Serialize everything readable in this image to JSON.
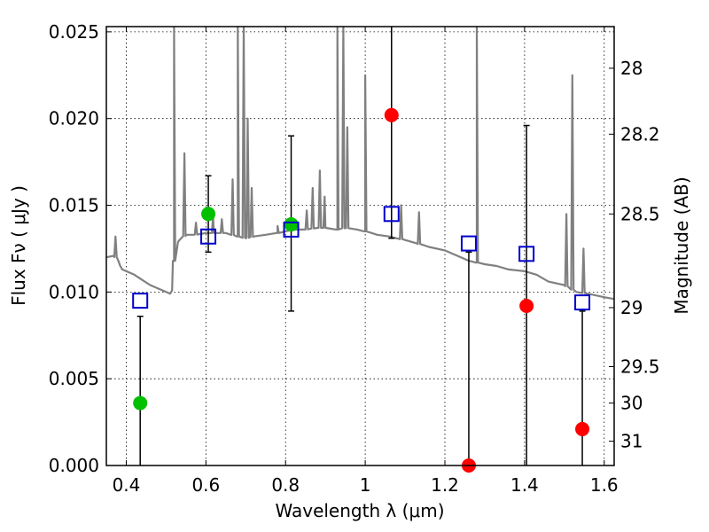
{
  "chart_data": {
    "type": "scatter",
    "xlabel": "Wavelength  λ (μm)",
    "ylabel": "Flux  Fν  ( μJy )",
    "y2label": "Magnitude (AB)",
    "xlim": [
      0.35,
      1.625
    ],
    "ylim": [
      0.0,
      0.0253
    ],
    "grid": true,
    "xticks": [
      {
        "value": 0.4,
        "label": "0.4"
      },
      {
        "value": 0.6,
        "label": "0.6"
      },
      {
        "value": 0.8,
        "label": "0.8"
      },
      {
        "value": 1.0,
        "label": "1"
      },
      {
        "value": 1.2,
        "label": "1.2"
      },
      {
        "value": 1.4,
        "label": "1.4"
      },
      {
        "value": 1.6,
        "label": "1.6"
      }
    ],
    "yticks": [
      {
        "value": 0.0,
        "label": "0.000"
      },
      {
        "value": 0.005,
        "label": "0.005"
      },
      {
        "value": 0.01,
        "label": "0.010"
      },
      {
        "value": 0.015,
        "label": "0.015"
      },
      {
        "value": 0.02,
        "label": "0.020"
      },
      {
        "value": 0.025,
        "label": "0.025"
      }
    ],
    "y2ticks": [
      {
        "flux": 0.0229,
        "label": "28"
      },
      {
        "flux": 0.0191,
        "label": "28.2"
      },
      {
        "flux": 0.0145,
        "label": "28.5"
      },
      {
        "flux": 0.0091,
        "label": "29"
      },
      {
        "flux": 0.0057,
        "label": "29.5"
      },
      {
        "flux": 0.0036,
        "label": "30"
      },
      {
        "flux": 0.0014,
        "label": "31"
      }
    ],
    "colors": {
      "model": "#808080",
      "detected": "#00c000",
      "undetected": "#ff0000",
      "model_bands": "#0000cc",
      "errorbars": "#000000"
    },
    "model_spectrum": {
      "x": [
        0.35,
        0.37,
        0.38,
        0.385,
        0.39,
        0.4,
        0.42,
        0.44,
        0.46,
        0.48,
        0.5,
        0.51,
        0.515,
        0.52,
        0.53,
        0.55,
        0.57,
        0.6,
        0.62,
        0.65,
        0.68,
        0.7,
        0.72,
        0.75,
        0.78,
        0.8,
        0.82,
        0.85,
        0.88,
        0.9,
        0.93,
        0.95,
        0.98,
        1.0,
        1.03,
        1.06,
        1.1,
        1.13,
        1.16,
        1.2,
        1.23,
        1.26,
        1.28,
        1.3,
        1.33,
        1.36,
        1.4,
        1.43,
        1.46,
        1.5,
        1.53,
        1.56,
        1.6,
        1.625
      ],
      "y": [
        0.012,
        0.0121,
        0.0118,
        0.0115,
        0.0113,
        0.0112,
        0.011,
        0.0107,
        0.0104,
        0.0102,
        0.01,
        0.0099,
        0.0101,
        0.0118,
        0.0129,
        0.0133,
        0.0133,
        0.0134,
        0.0134,
        0.0134,
        0.0132,
        0.0131,
        0.0132,
        0.0133,
        0.0134,
        0.0135,
        0.0136,
        0.0136,
        0.0137,
        0.0137,
        0.0136,
        0.0137,
        0.0136,
        0.0135,
        0.0133,
        0.0132,
        0.013,
        0.0128,
        0.0126,
        0.0124,
        0.0121,
        0.0118,
        0.0117,
        0.0116,
        0.0115,
        0.0113,
        0.0112,
        0.011,
        0.0106,
        0.0104,
        0.01,
        0.0099,
        0.0097,
        0.0096
      ],
      "emission_lines": [
        {
          "x": 0.373,
          "peak": 0.0132
        },
        {
          "x": 0.52,
          "peak": 0.0253
        },
        {
          "x": 0.546,
          "peak": 0.018
        },
        {
          "x": 0.575,
          "peak": 0.014
        },
        {
          "x": 0.618,
          "peak": 0.0144
        },
        {
          "x": 0.64,
          "peak": 0.0142
        },
        {
          "x": 0.667,
          "peak": 0.0165
        },
        {
          "x": 0.68,
          "peak": 0.0253
        },
        {
          "x": 0.695,
          "peak": 0.0253
        },
        {
          "x": 0.705,
          "peak": 0.02
        },
        {
          "x": 0.715,
          "peak": 0.016
        },
        {
          "x": 0.78,
          "peak": 0.0138
        },
        {
          "x": 0.853,
          "peak": 0.0147
        },
        {
          "x": 0.868,
          "peak": 0.016
        },
        {
          "x": 0.886,
          "peak": 0.017
        },
        {
          "x": 0.898,
          "peak": 0.0155
        },
        {
          "x": 0.93,
          "peak": 0.0253
        },
        {
          "x": 0.945,
          "peak": 0.0253
        },
        {
          "x": 0.955,
          "peak": 0.0195
        },
        {
          "x": 1.0,
          "peak": 0.0225
        },
        {
          "x": 1.09,
          "peak": 0.015
        },
        {
          "x": 1.135,
          "peak": 0.0146
        },
        {
          "x": 1.28,
          "peak": 0.0253
        },
        {
          "x": 1.52,
          "peak": 0.0225
        },
        {
          "x": 1.505,
          "peak": 0.0145
        },
        {
          "x": 1.548,
          "peak": 0.0125
        }
      ]
    },
    "series": [
      {
        "name": "",
        "marker": "circle",
        "x": [
          0.435,
          0.606,
          0.814
        ],
        "y": [
          0.0036,
          0.0145,
          0.0139
        ]
      },
      {
        "name": "",
        "marker": "circle",
        "x": [
          1.066,
          1.26,
          1.405,
          1.545
        ],
        "y": [
          0.0202,
          0.0,
          0.0092,
          0.0021
        ]
      },
      {
        "name": "",
        "marker": "open-square",
        "x": [
          0.435,
          0.606,
          0.814,
          1.066,
          1.26,
          1.405,
          1.545
        ],
        "y": [
          0.0095,
          0.0132,
          0.0136,
          0.0145,
          0.0128,
          0.0122,
          0.0094
        ]
      }
    ],
    "errorbars": [
      {
        "x": 0.435,
        "low": 0.0,
        "high": 0.0086
      },
      {
        "x": 0.606,
        "low": 0.0123,
        "high": 0.0167
      },
      {
        "x": 0.814,
        "low": 0.0089,
        "high": 0.019
      },
      {
        "x": 1.066,
        "low": 0.0131,
        "high": 0.0253
      },
      {
        "x": 1.26,
        "low": 0.0,
        "high": 0.0123
      },
      {
        "x": 1.405,
        "low": 0.0,
        "high": 0.0196
      },
      {
        "x": 1.545,
        "low": 0.0,
        "high": 0.0089
      }
    ]
  }
}
